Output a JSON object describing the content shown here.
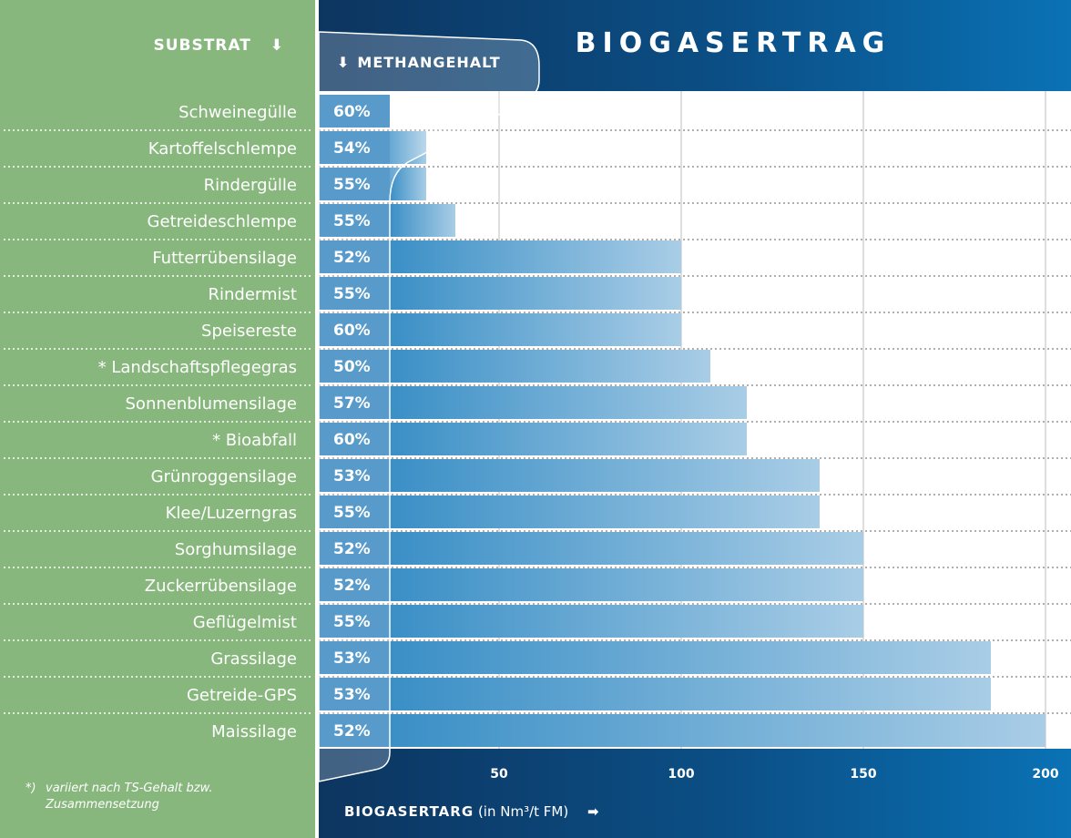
{
  "header": {
    "title": "BIOGASERTRAG",
    "substrat_label": "SUBSTRAT",
    "methan_label": "METHANGEHALT",
    "arrow_down": "⬇",
    "arrow_right": "➡"
  },
  "footnote": {
    "marker": "*)",
    "line1": "variiert nach TS-Gehalt bzw.",
    "line2": "Zusammensetzung"
  },
  "xaxis": {
    "label_bold": "BIOGASERTARG",
    "label_unit": "(in Nm³/t FM)"
  },
  "colors": {
    "left_panel": "#88b77e",
    "header_dark": "#0d3560",
    "header_light": "#0a72b5",
    "bar_dark": "#3a8fc6",
    "bar_light": "#a9cde6",
    "methane_cell": "#2a7fbd"
  },
  "chart_data": {
    "type": "bar",
    "title": "BIOGASERTRAG",
    "xlabel": "BIOGASERTARG (in Nm³/t FM)",
    "orientation": "horizontal",
    "xlim": [
      20,
      200
    ],
    "ticks": [
      50,
      100,
      150,
      200
    ],
    "grid": true,
    "categories": [
      "Schweinegülle",
      "Kartoffelschlempe",
      "Rindergülle",
      "Getreideschlempe",
      "Futterrübensilage",
      "Rindermist",
      "Speisereste",
      "* Landschaftspflegegras",
      "Sonnenblumensilage",
      "* Bioabfall",
      "Grünroggensilage",
      "Klee/Luzerngras",
      "Sorghumsilage",
      "Zuckerrübensilage",
      "Geflügelmist",
      "Grassilage",
      "Getreide-GPS",
      "Maissilage"
    ],
    "values": [
      20,
      30,
      30,
      38,
      100,
      100,
      100,
      108,
      118,
      118,
      138,
      138,
      150,
      150,
      150,
      185,
      185,
      200
    ],
    "methane": [
      "60%",
      "54%",
      "55%",
      "55%",
      "52%",
      "55%",
      "60%",
      "50%",
      "57%",
      "60%",
      "53%",
      "55%",
      "52%",
      "52%",
      "55%",
      "53%",
      "53%",
      "52%"
    ]
  }
}
